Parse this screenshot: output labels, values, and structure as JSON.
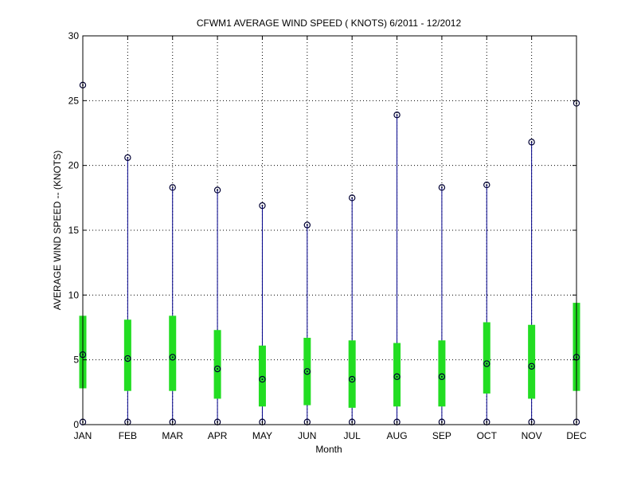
{
  "chart_data": {
    "type": "box",
    "title": "CFWM1  AVERAGE WIND SPEED ( KNOTS) 6/2011 - 12/2012",
    "xlabel": "Month",
    "ylabel": "AVERAGE WIND SPEED -- (KNOTS)",
    "ylim": [
      0,
      30
    ],
    "yticks": [
      0,
      5,
      10,
      15,
      20,
      25,
      30
    ],
    "grid": true,
    "categories": [
      "JAN",
      "FEB",
      "MAR",
      "APR",
      "MAY",
      "JUN",
      "JUL",
      "AUG",
      "SEP",
      "OCT",
      "NOV",
      "DEC"
    ],
    "series": [
      {
        "name": "min",
        "values": [
          0.2,
          0.2,
          0.2,
          0.2,
          0.2,
          0.2,
          0.2,
          0.2,
          0.2,
          0.2,
          0.2,
          0.2
        ]
      },
      {
        "name": "q1",
        "values": [
          2.8,
          2.6,
          2.6,
          2.0,
          1.4,
          1.5,
          1.3,
          1.4,
          1.4,
          2.4,
          2.0,
          2.6
        ]
      },
      {
        "name": "median",
        "values": [
          5.4,
          5.1,
          5.2,
          4.3,
          3.5,
          4.1,
          3.5,
          3.7,
          3.7,
          4.7,
          4.5,
          5.2
        ]
      },
      {
        "name": "q3",
        "values": [
          8.4,
          8.1,
          8.4,
          7.3,
          6.1,
          6.7,
          6.5,
          6.3,
          6.5,
          7.9,
          7.7,
          9.4
        ]
      },
      {
        "name": "max",
        "values": [
          26.2,
          20.6,
          18.3,
          18.1,
          16.9,
          15.4,
          17.5,
          23.9,
          18.3,
          18.5,
          21.8,
          24.8
        ]
      }
    ],
    "colors": {
      "whisker": "#00008b",
      "box": "#22dd22",
      "marker": "#000033",
      "grid": "#000000",
      "axis": "#000000"
    }
  }
}
